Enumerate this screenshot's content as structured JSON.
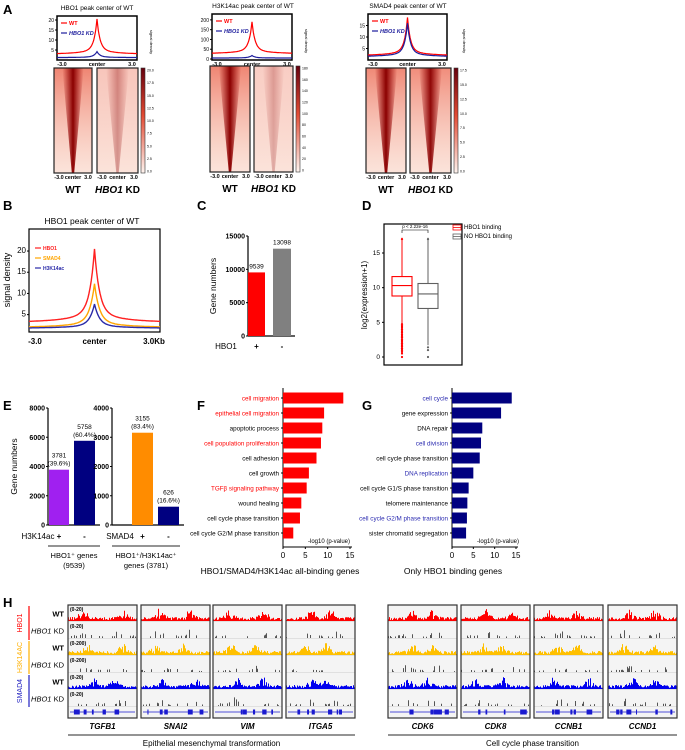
{
  "panel_labels": {
    "A": "A",
    "B": "B",
    "C": "C",
    "D": "D",
    "E": "E",
    "F": "F",
    "G": "G",
    "H": "H"
  },
  "colors": {
    "red": "#ff0000",
    "blue": "#1c1c9c",
    "navy": "#000080",
    "orange": "#ffa500",
    "gray": "#808080",
    "purple": "#a020f0",
    "track_gray": "#555555",
    "track_yellow": "#ffc000",
    "track_blue": "#0000ee"
  },
  "chart_data": [
    {
      "id": "A1",
      "type": "line",
      "title": "HBO1 peak center of WT",
      "ylim": [
        0,
        22
      ],
      "yticks": [
        "5",
        "10",
        "15",
        "20"
      ],
      "ytick_values": [
        5,
        10,
        15,
        20
      ],
      "xticks": [
        "-3.0",
        "center",
        "3.0"
      ],
      "series": [
        {
          "name": "WT",
          "color": "#ff0000",
          "peak": 20.5,
          "flank": 3.0
        },
        {
          "name": "HBO1 KD",
          "color": "#1c1c9c",
          "peak": 4.2,
          "flank": 1.2
        }
      ],
      "heatmap": {
        "type": "heatmap",
        "samples": [
          {
            "gene": "",
            "label": "WT",
            "intensity": 1.0
          },
          {
            "gene": "HBO1",
            "label": " KD",
            "intensity": 0.22
          }
        ],
        "xticks": [
          "-3.0",
          "center",
          "3.0"
        ],
        "colorbar_label": "signal density",
        "colorbar_ticks": [
          "20.0",
          "17.5",
          "15.0",
          "12.5",
          "10.0",
          "7.5",
          "5.0",
          "2.5",
          "0.0"
        ]
      }
    },
    {
      "id": "A2",
      "type": "line",
      "title": "H3K14ac peak center of WT",
      "ylim": [
        -5,
        230
      ],
      "yticks": [
        "0",
        "50",
        "100",
        "150",
        "200"
      ],
      "ytick_values": [
        0,
        50,
        100,
        150,
        200
      ],
      "xticks": [
        "-3.0",
        "center",
        "3.0"
      ],
      "series": [
        {
          "name": "WT",
          "color": "#ff0000",
          "peak": 190,
          "flank": 28
        },
        {
          "name": "HBO1 KD",
          "color": "#1c1c9c",
          "peak": 18,
          "flank": 5
        }
      ],
      "heatmap": {
        "type": "heatmap",
        "samples": [
          {
            "gene": "",
            "label": "WT",
            "intensity": 1.0
          },
          {
            "gene": "HBO1",
            "label": " KD",
            "intensity": 0.12
          }
        ],
        "xticks": [
          "-3.0",
          "center",
          "3.0"
        ],
        "colorbar_label": "signal density",
        "colorbar_ticks": [
          "180",
          "160",
          "140",
          "120",
          "100",
          "80",
          "60",
          "40",
          "20",
          "0"
        ]
      }
    },
    {
      "id": "A3",
      "type": "line",
      "title": "SMAD4 peak center of WT",
      "ylim": [
        0,
        20
      ],
      "yticks": [
        "5",
        "10",
        "15"
      ],
      "ytick_values": [
        5,
        10,
        15
      ],
      "xticks": [
        "-3.0",
        "center",
        "3.0"
      ],
      "series": [
        {
          "name": "WT",
          "color": "#ff0000",
          "peak": 18.5,
          "flank": 2.0
        },
        {
          "name": "HBO1 KD",
          "color": "#1c1c9c",
          "peak": 16.0,
          "flank": 1.5
        }
      ],
      "heatmap": {
        "type": "heatmap",
        "samples": [
          {
            "gene": "",
            "label": "WT",
            "intensity": 0.95
          },
          {
            "gene": "HBO1",
            "label": " KD",
            "intensity": 0.9
          }
        ],
        "xticks": [
          "-3.0",
          "center",
          "3.0"
        ],
        "colorbar_label": "signal density",
        "colorbar_ticks": [
          "17.5",
          "15.0",
          "12.5",
          "10.0",
          "7.5",
          "5.0",
          "2.5",
          "0.0"
        ]
      }
    },
    {
      "id": "B",
      "type": "line",
      "title": "HBO1 peak center of  WT",
      "ylabel": "signal density",
      "ylim": [
        0.9,
        25.2
      ],
      "yticks": [
        "5",
        "10",
        "15",
        "20"
      ],
      "ytick_values": [
        5,
        10,
        15,
        20
      ],
      "xticks": [
        "-3.0",
        "center",
        "3.0Kb"
      ],
      "series": [
        {
          "name": "HBO1",
          "color": "#ff2020",
          "peak": 20.5,
          "flank": 3.2
        },
        {
          "name": "SMAD4",
          "color": "#ffa500",
          "peak": 12.3,
          "flank": 2.0
        },
        {
          "name": "H3K14ac",
          "color": "#2a2aa8",
          "peak": 7.5,
          "flank": 1.8
        }
      ]
    },
    {
      "id": "C",
      "type": "bar",
      "ylabel": "Gene numbers",
      "ylim": [
        0,
        15000
      ],
      "yticks": [
        "0",
        "5000",
        "10000",
        "15000"
      ],
      "ytick_values": [
        0,
        5000,
        10000,
        15000
      ],
      "group_label": "HBO1",
      "categories": [
        "+",
        "-"
      ],
      "values": [
        9539,
        13098
      ],
      "value_labels": [
        "9539",
        "13098"
      ],
      "bar_colors": [
        "#ff0000",
        "#808080"
      ]
    },
    {
      "id": "D",
      "type": "box",
      "ylabel": "log2(expression+1)",
      "ylim": [
        0,
        18
      ],
      "yticks": [
        "0",
        "5",
        "10",
        "15"
      ],
      "ytick_values": [
        0,
        5,
        10,
        15
      ],
      "annotation": "p < 2.22e-16",
      "series": [
        {
          "name": "HBO1 binding",
          "color": "#ff0000",
          "whisker_low": 4.8,
          "q1": 8.8,
          "median": 10.3,
          "q3": 11.6,
          "whisker_high": 17.2,
          "outliers": [
            0.0,
            1.2,
            1.6,
            2.0,
            2.4,
            2.8,
            3.2,
            3.6,
            4.0,
            4.4,
            17.0
          ]
        },
        {
          "name": "NO HBO1 binding",
          "color": "#606060",
          "whisker_low": 1.7,
          "q1": 7.0,
          "median": 9.1,
          "q3": 10.6,
          "whisker_high": 17.2,
          "outliers": [
            0.0,
            1.0,
            1.4,
            17.0
          ]
        }
      ]
    },
    {
      "id": "E1",
      "type": "bar",
      "ylabel": "Gene numbers",
      "ylim": [
        0,
        8000
      ],
      "yticks": [
        "0",
        "2000",
        "4000",
        "6000",
        "8000"
      ],
      "ytick_values": [
        0,
        2000,
        4000,
        6000,
        8000
      ],
      "group_label": "H3K14ac",
      "categories": [
        "+",
        "-"
      ],
      "values": [
        3781,
        5758
      ],
      "value_labels": [
        "3781",
        "5758"
      ],
      "pct_labels": [
        "(39.6%)",
        "(60.4%)"
      ],
      "bar_colors": [
        "#a020f0",
        "#000080"
      ],
      "caption": [
        "HBO1⁺ genes",
        "(9539)"
      ]
    },
    {
      "id": "E2",
      "type": "bar",
      "ylim": [
        0,
        4000
      ],
      "yticks": [
        "0",
        "1000",
        "2000",
        "3000",
        "4000"
      ],
      "ytick_values": [
        0,
        1000,
        2000,
        3000,
        4000
      ],
      "group_label": "SMAD4",
      "categories": [
        "+",
        "-"
      ],
      "values": [
        3155,
        626
      ],
      "value_labels": [
        "3155",
        "626"
      ],
      "pct_labels": [
        "(83.4%)",
        "(16.6%)"
      ],
      "bar_colors": [
        "#ff8c00",
        "#000080"
      ],
      "caption": [
        "HBO1⁺/H3K14ac⁺",
        "genes (3781)"
      ]
    },
    {
      "id": "F",
      "type": "bar",
      "orientation": "horizontal",
      "xlim": [
        0,
        15
      ],
      "xticks": [
        "0",
        "5",
        "10",
        "15"
      ],
      "xtick_values": [
        0,
        5,
        10,
        15
      ],
      "xlabel": "-log10 (p-value)",
      "caption": "HBO1/SMAD4/H3K14ac all-binding genes",
      "bar_color": "#ff0000",
      "categories": [
        "cell migration",
        "epithelial cell migration",
        "apoptotic process",
        "cell population proliferation",
        "cell adhesion",
        "cell growth",
        "TGFβ signaling pathway",
        "wound healing",
        "cell cycle phase transition",
        "cell cycle G2/M phase transition"
      ],
      "highlight": [
        true,
        true,
        false,
        true,
        false,
        false,
        true,
        false,
        false,
        false
      ],
      "highlight_color": "#ff0000",
      "values": [
        13.5,
        9.2,
        8.8,
        8.5,
        7.5,
        5.8,
        5.3,
        4.1,
        3.8,
        2.3
      ]
    },
    {
      "id": "G",
      "type": "bar",
      "orientation": "horizontal",
      "xlim": [
        0,
        15
      ],
      "xticks": [
        "0",
        "5",
        "10",
        "15"
      ],
      "xtick_values": [
        0,
        5,
        10,
        15
      ],
      "xlabel": "-log10 (p-value)",
      "caption": "Only HBO1 binding genes",
      "bar_color": "#000080",
      "categories": [
        "cell cycle",
        "gene expression",
        "DNA repair",
        "cell division",
        "cell cycle phase transition",
        "DNA replication",
        "cell cycle G1/S phase transition",
        "telomere maintenance",
        "cell cycle G2/M phase transition",
        "sister chromatid segregation"
      ],
      "highlight": [
        true,
        false,
        false,
        true,
        false,
        true,
        false,
        false,
        true,
        false
      ],
      "highlight_color": "#2a2ab0",
      "values": [
        14.0,
        11.5,
        7.1,
        6.8,
        6.5,
        5.0,
        3.9,
        3.6,
        3.5,
        3.3
      ]
    }
  ],
  "tracks": {
    "groups": [
      {
        "name": "HBO1",
        "color": "#ff0000"
      },
      {
        "name": "H3K14AC",
        "color": "#ffb000"
      },
      {
        "name": "SMAD4",
        "color": "#2020c0"
      }
    ],
    "rows": [
      {
        "gene": "",
        "label": "WT",
        "range": "(0-20)",
        "color": "#ff0000"
      },
      {
        "gene": "HBO1",
        "label": " KD",
        "range": "(0-20)",
        "color": "#555555"
      },
      {
        "gene": "",
        "label": "WT",
        "range": "(0-200)",
        "color": "#ffc000"
      },
      {
        "gene": "HBO1",
        "label": " KD",
        "range": "(0-200)",
        "color": "#555555"
      },
      {
        "gene": "",
        "label": "WT",
        "range": "(0-20)",
        "color": "#0000ee"
      },
      {
        "gene": "HBO1",
        "label": " KD",
        "range": "(0-20)",
        "color": "#555555"
      }
    ],
    "gene_sets": [
      {
        "name": "Epithelial mesenchymal transformation",
        "genes": [
          "TGFB1",
          "SNAI2",
          "VIM",
          "ITGA5"
        ]
      },
      {
        "name": "Cell cycle phase transition",
        "genes": [
          "CDK6",
          "CDK8",
          "CCNB1",
          "CCND1"
        ]
      }
    ]
  }
}
